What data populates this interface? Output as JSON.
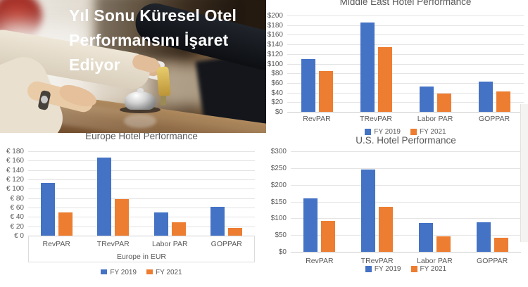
{
  "photo": {
    "title_line1": "Yıl Sonu Küresel Otel",
    "title_line2": "Performansını İşaret Ediyor"
  },
  "colors": {
    "fy2019_blue": "#4472C4",
    "fy2021_orange": "#ED7D31",
    "chart_text": "#595959",
    "gridline": "#E4E4E4"
  },
  "chart_data": [
    {
      "id": "middle_east",
      "type": "bar",
      "title": "Middle East Hotel Performance",
      "categories": [
        "RevPAR",
        "TRevPAR",
        "Labor PAR",
        "GOPPAR"
      ],
      "series": [
        {
          "name": "FY 2019",
          "color": "#4472C4",
          "values": [
            110,
            185,
            53,
            63
          ]
        },
        {
          "name": "FY 2021",
          "color": "#ED7D31",
          "values": [
            84,
            135,
            38,
            43
          ]
        }
      ],
      "ylim": [
        0,
        200
      ],
      "y_ticks": [
        "$200",
        "$180",
        "$160",
        "$140",
        "$120",
        "$100",
        "$80",
        "$60",
        "$40",
        "$20",
        "$0"
      ],
      "xlabel": "",
      "legend": [
        "FY 2019",
        "FY 2021"
      ],
      "legend_position": "bottom",
      "grid": true
    },
    {
      "id": "europe",
      "type": "bar",
      "title": "Europe Hotel Performance",
      "categories": [
        "RevPAR",
        "TRevPAR",
        "Labor PAR",
        "GOPPAR"
      ],
      "series": [
        {
          "name": "FY 2019",
          "color": "#4472C4",
          "values": [
            112,
            166,
            50,
            61
          ]
        },
        {
          "name": "FY 2021",
          "color": "#ED7D31",
          "values": [
            49,
            78,
            28,
            17
          ]
        }
      ],
      "ylim": [
        0,
        180
      ],
      "y_ticks": [
        "€ 180",
        "€ 160",
        "€ 140",
        "€ 120",
        "€ 100",
        "€ 80",
        "€ 60",
        "€ 40",
        "€ 20",
        "€ 0"
      ],
      "xlabel": "Europe in EUR",
      "legend": [
        "FY 2019",
        "FY 2021"
      ],
      "legend_position": "bottom",
      "grid": true
    },
    {
      "id": "us",
      "type": "bar",
      "title": "U.S. Hotel Performance",
      "categories": [
        "RevPAR",
        "TRevPAR",
        "Labor PAR",
        "GOPPAR"
      ],
      "series": [
        {
          "name": "FY 2019",
          "color": "#4472C4",
          "values": [
            160,
            245,
            85,
            88
          ]
        },
        {
          "name": "FY 2021",
          "color": "#ED7D31",
          "values": [
            92,
            134,
            46,
            42
          ]
        }
      ],
      "ylim": [
        0,
        300
      ],
      "y_ticks": [
        "$300",
        "$250",
        "$200",
        "$150",
        "$100",
        "$50",
        "$0"
      ],
      "xlabel": "",
      "legend": [
        "FY 2019",
        "FY 2021"
      ],
      "legend_position": "bottom",
      "grid": true
    }
  ]
}
